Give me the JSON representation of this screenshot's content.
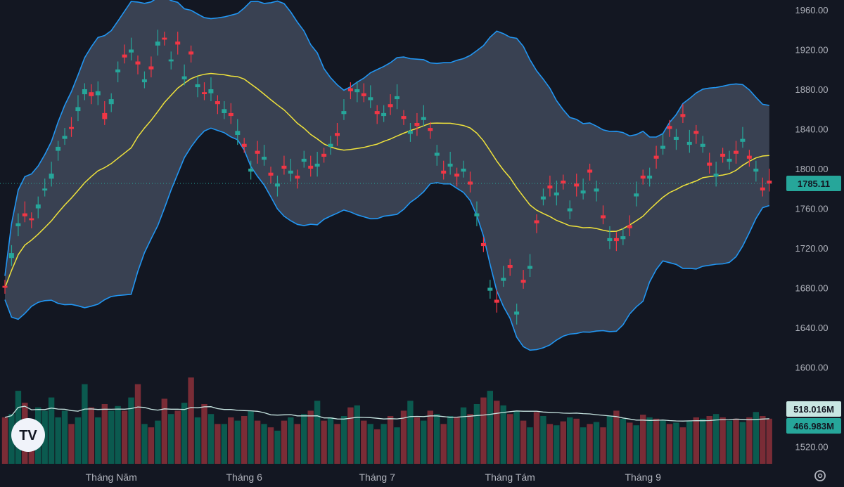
{
  "chart_data": {
    "type": "candlestick",
    "ylim": [
      1500,
      1970
    ],
    "y_ticks": [
      1520,
      1560,
      1600,
      1640,
      1680,
      1720,
      1760,
      1800,
      1840,
      1880,
      1920,
      1960
    ],
    "y_tick_labels": [
      "1520.00",
      "1560.00",
      "1600.00",
      "1640.00",
      "1680.00",
      "1720.00",
      "1760.00",
      "1800.00",
      "1840.00",
      "1880.00",
      "1920.00",
      "1960.00"
    ],
    "x_labels": [
      {
        "label": "Tháng Năm",
        "index": 16
      },
      {
        "label": "Tháng 6",
        "index": 36
      },
      {
        "label": "Tháng 7",
        "index": 56
      },
      {
        "label": "Tháng Tám",
        "index": 76
      },
      {
        "label": "Tháng 9",
        "index": 96
      }
    ],
    "closes": [
      1680,
      1715,
      1745,
      1752,
      1748,
      1764,
      1780,
      1795,
      1822,
      1833,
      1840,
      1862,
      1880,
      1873,
      1878,
      1850,
      1870,
      1900,
      1912,
      1920,
      1905,
      1890,
      1900,
      1928,
      1930,
      1910,
      1925,
      1893,
      1915,
      1885,
      1875,
      1880,
      1865,
      1860,
      1853,
      1838,
      1822,
      1800,
      1815,
      1812,
      1793,
      1785,
      1800,
      1798,
      1790,
      1810,
      1800,
      1805,
      1812,
      1825,
      1833,
      1858,
      1878,
      1880,
      1873,
      1872,
      1855,
      1856,
      1862,
      1873,
      1850,
      1838,
      1843,
      1852,
      1838,
      1816,
      1795,
      1805,
      1792,
      1800,
      1784,
      1755,
      1722,
      1680,
      1665,
      1690,
      1700,
      1656,
      1685,
      1702,
      1745,
      1772,
      1780,
      1776,
      1785,
      1760,
      1782,
      1778,
      1796,
      1780,
      1750,
      1730,
      1727,
      1732,
      1740,
      1775,
      1790,
      1793,
      1810,
      1823,
      1840,
      1832,
      1852,
      1827,
      1835,
      1825,
      1803,
      1795,
      1812,
      1810,
      1815,
      1830,
      1810,
      1800,
      1778,
      1785
    ],
    "opens": [
      1682,
      1710,
      1742,
      1755,
      1750,
      1760,
      1778,
      1790,
      1818,
      1830,
      1842,
      1858,
      1875,
      1877,
      1874,
      1856,
      1865,
      1897,
      1915,
      1917,
      1908,
      1887,
      1903,
      1924,
      1932,
      1908,
      1928,
      1890,
      1918,
      1882,
      1877,
      1876,
      1868,
      1856,
      1856,
      1834,
      1825,
      1797,
      1818,
      1809,
      1796,
      1782,
      1803,
      1795,
      1793,
      1807,
      1803,
      1802,
      1815,
      1822,
      1836,
      1855,
      1881,
      1877,
      1876,
      1869,
      1858,
      1853,
      1865,
      1870,
      1853,
      1835,
      1846,
      1849,
      1841,
      1813,
      1798,
      1802,
      1795,
      1797,
      1787,
      1752,
      1725,
      1677,
      1668,
      1687,
      1703,
      1653,
      1688,
      1699,
      1748,
      1769,
      1783,
      1773,
      1788,
      1757,
      1785,
      1775,
      1799,
      1777,
      1753,
      1727,
      1730,
      1729,
      1743,
      1772,
      1793,
      1790,
      1813,
      1820,
      1843,
      1829,
      1855,
      1824,
      1838,
      1822,
      1806,
      1792,
      1815,
      1807,
      1818,
      1827,
      1813,
      1797,
      1781,
      1788
    ],
    "volume_ylim": [
      0,
      180
    ],
    "volumes": [
      70,
      75,
      110,
      92,
      60,
      85,
      80,
      100,
      70,
      80,
      60,
      70,
      120,
      85,
      70,
      90,
      80,
      87,
      80,
      100,
      120,
      60,
      55,
      65,
      98,
      75,
      80,
      92,
      130,
      70,
      90,
      75,
      60,
      60,
      70,
      65,
      72,
      80,
      65,
      60,
      55,
      50,
      65,
      70,
      60,
      75,
      80,
      95,
      65,
      70,
      60,
      72,
      85,
      88,
      65,
      60,
      52,
      60,
      72,
      55,
      80,
      95,
      70,
      65,
      80,
      75,
      60,
      72,
      70,
      85,
      75,
      90,
      100,
      110,
      95,
      88,
      75,
      80,
      65,
      55,
      78,
      72,
      60,
      58,
      64,
      70,
      68,
      55,
      60,
      63,
      55,
      72,
      80,
      68,
      62,
      58,
      74,
      70,
      68,
      65,
      60,
      62,
      55,
      65,
      70,
      68,
      72,
      75,
      70,
      65,
      68,
      63,
      70,
      78,
      72,
      68
    ],
    "price_tag": {
      "label": "1785.11",
      "value": 1785.11,
      "color": "#26a69a"
    },
    "volume_tags": [
      {
        "label": "518.016M",
        "color": "#c8e6e2",
        "text_color": "#131722"
      },
      {
        "label": "466.983M",
        "color": "#26a69a",
        "text_color": "#131722"
      }
    ],
    "colors": {
      "background": "#131722",
      "up": "#26a69a",
      "down": "#f23645",
      "band": "#2962ff",
      "band_line": "#2196f3",
      "band_fill": "#41495a",
      "basis": "#f0e33b",
      "volume_up": "#0b5a4f",
      "volume_down": "#7a2c36",
      "volume_ma": "#c8e6e2"
    }
  },
  "logo": {
    "text": "TV"
  },
  "settings_icon": "gear-icon"
}
